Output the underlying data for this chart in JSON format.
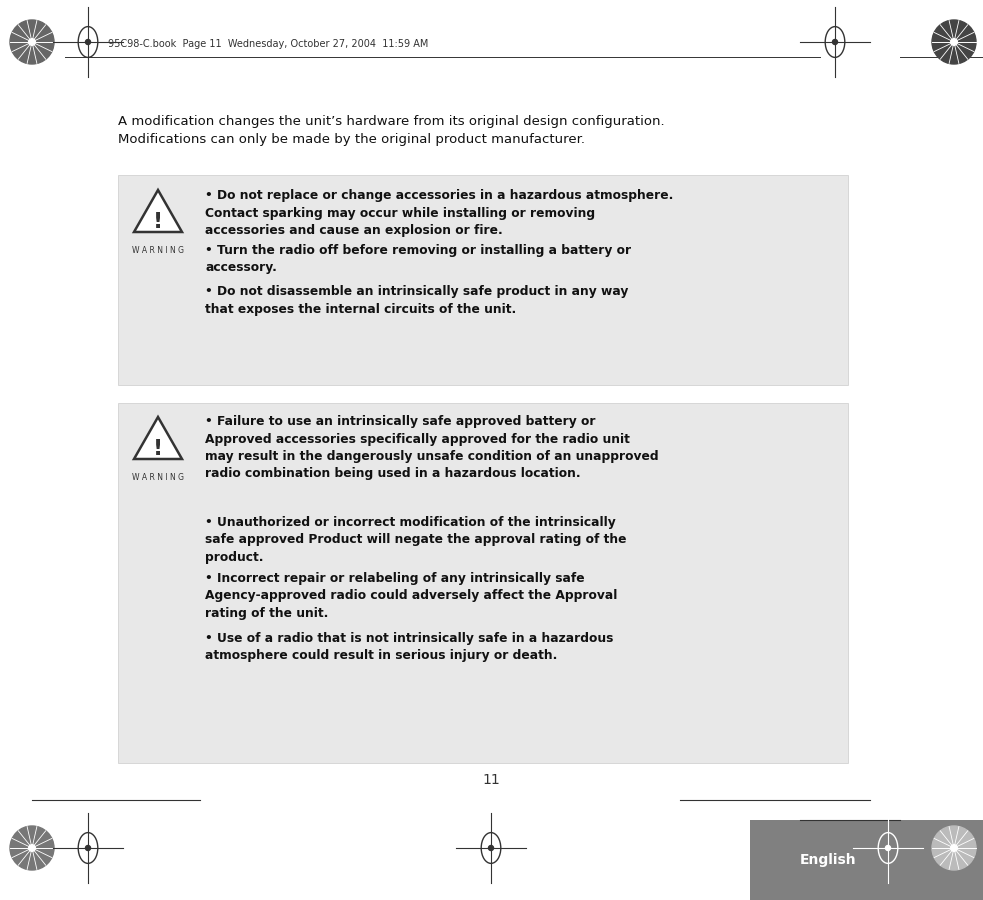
{
  "bg_color": "#ffffff",
  "header_text": "95C98-C.book  Page 11  Wednesday, October 27, 2004  11:59 AM",
  "intro_text": "A modification changes the unit’s hardware from its original design configuration.\nModifications can only be made by the original product manufacturer.",
  "box1_bg": "#e8e8e8",
  "box2_bg": "#e8e8e8",
  "box1_bullets": [
    "Do not replace or change accessories in a hazardous atmosphere. Contact sparking may occur while installing or removing accessories and cause an explosion or fire.",
    "Turn the radio off before removing or installing a battery or accessory.",
    "Do not disassemble an intrinsically safe product in any way that exposes the internal circuits of the unit."
  ],
  "box2_bullets": [
    "Failure to use an intrinsically safe approved battery or Approved accessories specifically approved for the radio unit may result in the dangerously unsafe condition of an unapproved radio combination being used in a hazardous location.",
    "Unauthorized or incorrect modification of the intrinsically safe approved Product will negate the approval rating of the product.",
    "Incorrect repair or relabeling of any intrinsically safe Agency-approved radio could adversely affect the Approval rating of the unit.",
    "Use of a radio that is not intrinsically safe in a hazardous atmosphere could result in serious injury or death."
  ],
  "warning_label": "W A R N I N G",
  "page_number": "11",
  "english_label": "English",
  "footer_bar_color": "#808080",
  "footer_text_color": "#ffffff"
}
